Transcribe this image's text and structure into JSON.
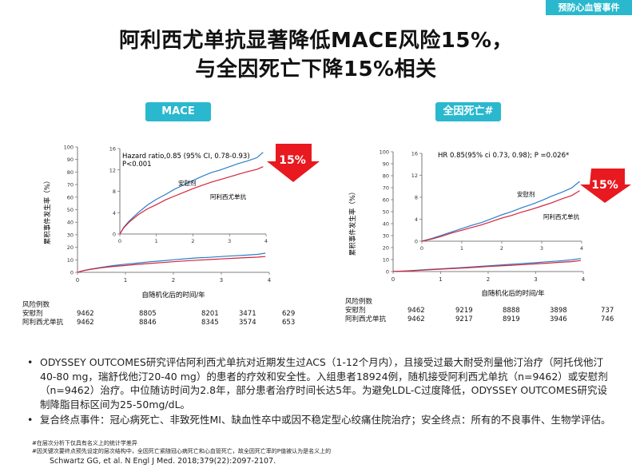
{
  "slide": {
    "tag": "预防心血管事件",
    "title_line1": "阿利西尤单抗显著降低MACE风险15%，",
    "title_line2": "与全因死亡下降15%相关"
  },
  "colors": {
    "placebo": "#2a7fc9",
    "alirocumab": "#d6233a",
    "accent": "#29b8ce",
    "badge": "#e8191f"
  },
  "panels": [
    {
      "pill": "MACE",
      "badge": "15%",
      "stats_line1": "Hazard ratio,0.85 (95% CI, 0.78-0.93)",
      "stats_line2": "P<0.001",
      "ylabel": "累积事件发生率（%）",
      "xlabel": "自随机化后的时间/年",
      "risk_header": "风险例数",
      "risk_rows": [
        {
          "label": "安慰剂",
          "values": [
            "9462",
            "8805",
            "8201",
            "3471",
            "629"
          ]
        },
        {
          "label": "阿利西尤单抗",
          "values": [
            "9462",
            "8846",
            "8345",
            "3574",
            "653"
          ]
        }
      ]
    },
    {
      "pill": "全因死亡#",
      "badge": "15%",
      "stats_line1": "HR 0.85(95% ci 0.73, 0.98); P =0.026*",
      "stats_line2": "",
      "ylabel": "累积事件发生率（%）",
      "xlabel": "自随机化后的时间/年",
      "risk_header": "风险例数",
      "risk_rows": [
        {
          "label": "安慰剂",
          "values": [
            "9462",
            "9219",
            "8888",
            "3898",
            "737"
          ]
        },
        {
          "label": "阿利西尤单抗",
          "values": [
            "9462",
            "9217",
            "8919",
            "3946",
            "746"
          ]
        }
      ]
    }
  ],
  "chart_data": [
    {
      "type": "line",
      "title": "",
      "xlabel": "自随机化后的时间/年",
      "ylabel": "累积事件发生率（%）",
      "xlim": [
        0,
        4
      ],
      "ylim": [
        0,
        100
      ],
      "x_ticks": [
        0,
        1,
        2,
        3,
        4
      ],
      "y_ticks": [
        0,
        10,
        20,
        30,
        40,
        50,
        60,
        70,
        80,
        90,
        100
      ],
      "inset": {
        "xlim": [
          0,
          4
        ],
        "ylim": [
          0,
          16
        ],
        "x_ticks": [
          0,
          1,
          2,
          3,
          4
        ],
        "y_ticks": [
          0,
          4,
          8,
          12,
          16
        ]
      },
      "series": [
        {
          "name": "安慰剂",
          "color": "#2a7fc9",
          "x": [
            0,
            0.1,
            0.25,
            0.5,
            0.75,
            1,
            1.25,
            1.5,
            1.75,
            2,
            2.25,
            2.5,
            2.75,
            3,
            3.25,
            3.5,
            3.75,
            3.92
          ],
          "y": [
            0,
            1.2,
            2.4,
            4.0,
            5.4,
            6.5,
            7.4,
            8.4,
            9.2,
            10.0,
            10.8,
            11.5,
            12.0,
            12.6,
            13.2,
            13.7,
            14.3,
            15.3
          ]
        },
        {
          "name": "阿利西尤单抗",
          "color": "#d6233a",
          "x": [
            0,
            0.1,
            0.25,
            0.5,
            0.75,
            1,
            1.25,
            1.5,
            1.75,
            2,
            2.25,
            2.5,
            2.75,
            3,
            3.25,
            3.5,
            3.75,
            3.92
          ],
          "y": [
            0,
            1.1,
            2.2,
            3.6,
            4.7,
            5.5,
            6.4,
            7.1,
            7.8,
            8.5,
            9.1,
            9.7,
            10.2,
            10.7,
            11.2,
            11.7,
            12.1,
            12.6
          ]
        }
      ]
    },
    {
      "type": "line",
      "title": "",
      "xlabel": "自随机化后的时间/年",
      "ylabel": "累积事件发生率（%）",
      "xlim": [
        0,
        4
      ],
      "ylim": [
        0,
        100
      ],
      "x_ticks": [
        0,
        1,
        2,
        3,
        4
      ],
      "y_ticks": [
        0,
        10,
        20,
        30,
        40,
        50,
        60,
        70,
        80,
        90,
        100
      ],
      "inset": {
        "xlim": [
          0,
          4
        ],
        "ylim": [
          0,
          16
        ],
        "x_ticks": [
          0,
          1,
          2,
          3,
          4
        ],
        "y_ticks": [
          0,
          4,
          8,
          12,
          16
        ]
      },
      "series": [
        {
          "name": "安慰剂",
          "color": "#2a7fc9",
          "x": [
            0,
            0.25,
            0.5,
            0.75,
            1,
            1.25,
            1.5,
            1.75,
            2,
            2.25,
            2.5,
            2.75,
            3,
            3.25,
            3.5,
            3.75,
            3.95
          ],
          "y": [
            0,
            0.5,
            1.1,
            1.7,
            2.3,
            2.9,
            3.4,
            4.1,
            4.8,
            5.4,
            6.1,
            6.7,
            7.4,
            8.2,
            8.9,
            9.7,
            10.9
          ]
        },
        {
          "name": "阿利西尤单抗",
          "color": "#d6233a",
          "x": [
            0,
            0.25,
            0.5,
            0.75,
            1,
            1.25,
            1.5,
            1.75,
            2,
            2.25,
            2.5,
            2.75,
            3,
            3.25,
            3.5,
            3.75,
            3.95
          ],
          "y": [
            0,
            0.4,
            0.9,
            1.5,
            2.0,
            2.5,
            3.0,
            3.6,
            4.2,
            4.7,
            5.3,
            5.8,
            6.4,
            7.0,
            7.7,
            8.3,
            9.2
          ]
        }
      ]
    }
  ],
  "body": {
    "bullet1": "ODYSSEY OUTCOMES研究评估阿利西尤单抗对近期发生过ACS（1-12个月内），且接受过最大耐受剂量他汀治疗（阿托伐他汀40-80 mg，瑞舒伐他汀20-40 mg）的患者的疗效和安全性。入组患者18924例，随机接受阿利西尤单抗（n=9462）或安慰剂（n=9462）治疗。中位随访时间为2.8年，部分患者治疗时间长达5年。为避免LDL-C过度降低，ODYSSEY OUTCOMES研究设制降脂目标区间为25-50mg/dL。",
    "bullet2": "复合终点事件：冠心病死亡、非致死性MI、缺血性卒中或因不稳定型心绞痛住院治疗；安全终点：所有的不良事件、生物学评估。",
    "note1": "#在层次分析下仅具有名义上的统计学差异",
    "note2": "#因关键次要终点预先设定的层次结构中，全因死亡紧随冠心病死亡和心血管死亡，故全因死亡率的P值被认为是名义上的",
    "reference": "Schwartz GG, et al. N Engl J Med. 2018;379(22):2097-2107."
  }
}
